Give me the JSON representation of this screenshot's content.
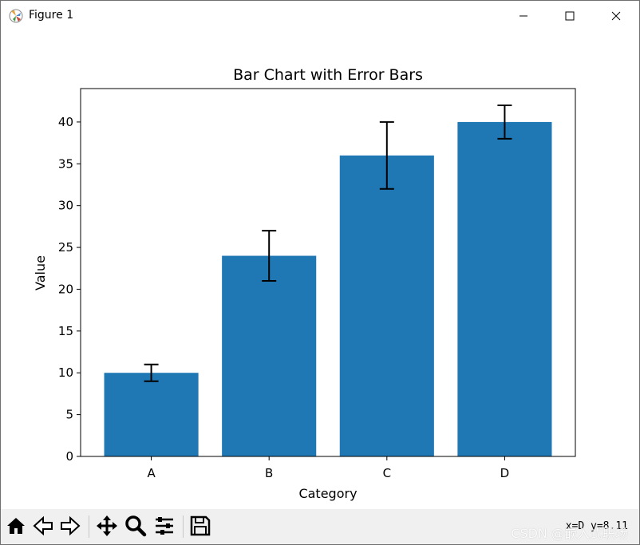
{
  "window": {
    "title": "Figure 1",
    "icons": [
      "matplotlib-icon",
      "minimize-icon",
      "maximize-icon",
      "close-icon"
    ]
  },
  "chart_data": {
    "type": "bar",
    "title": "Bar Chart with Error Bars",
    "xlabel": "Category",
    "ylabel": "Value",
    "categories": [
      "A",
      "B",
      "C",
      "D"
    ],
    "values": [
      10,
      24,
      36,
      40
    ],
    "errors": [
      1,
      3,
      4,
      2
    ],
    "ylim": [
      0,
      44
    ],
    "yticks": [
      0,
      5,
      10,
      15,
      20,
      25,
      30,
      35,
      40
    ],
    "ytick_labels": [
      "0",
      "5",
      "10",
      "15",
      "20",
      "25",
      "30",
      "35",
      "40"
    ],
    "bar_color": "#1f77b4",
    "error_color": "#000000",
    "grid": false
  },
  "toolbar": {
    "icons": [
      "home-icon",
      "back-icon",
      "forward-icon",
      "pan-icon",
      "zoom-icon",
      "configure-icon",
      "save-icon"
    ],
    "coordinates": "x=D  y=8.11"
  },
  "watermark": "CSDN @嵌入式职场"
}
